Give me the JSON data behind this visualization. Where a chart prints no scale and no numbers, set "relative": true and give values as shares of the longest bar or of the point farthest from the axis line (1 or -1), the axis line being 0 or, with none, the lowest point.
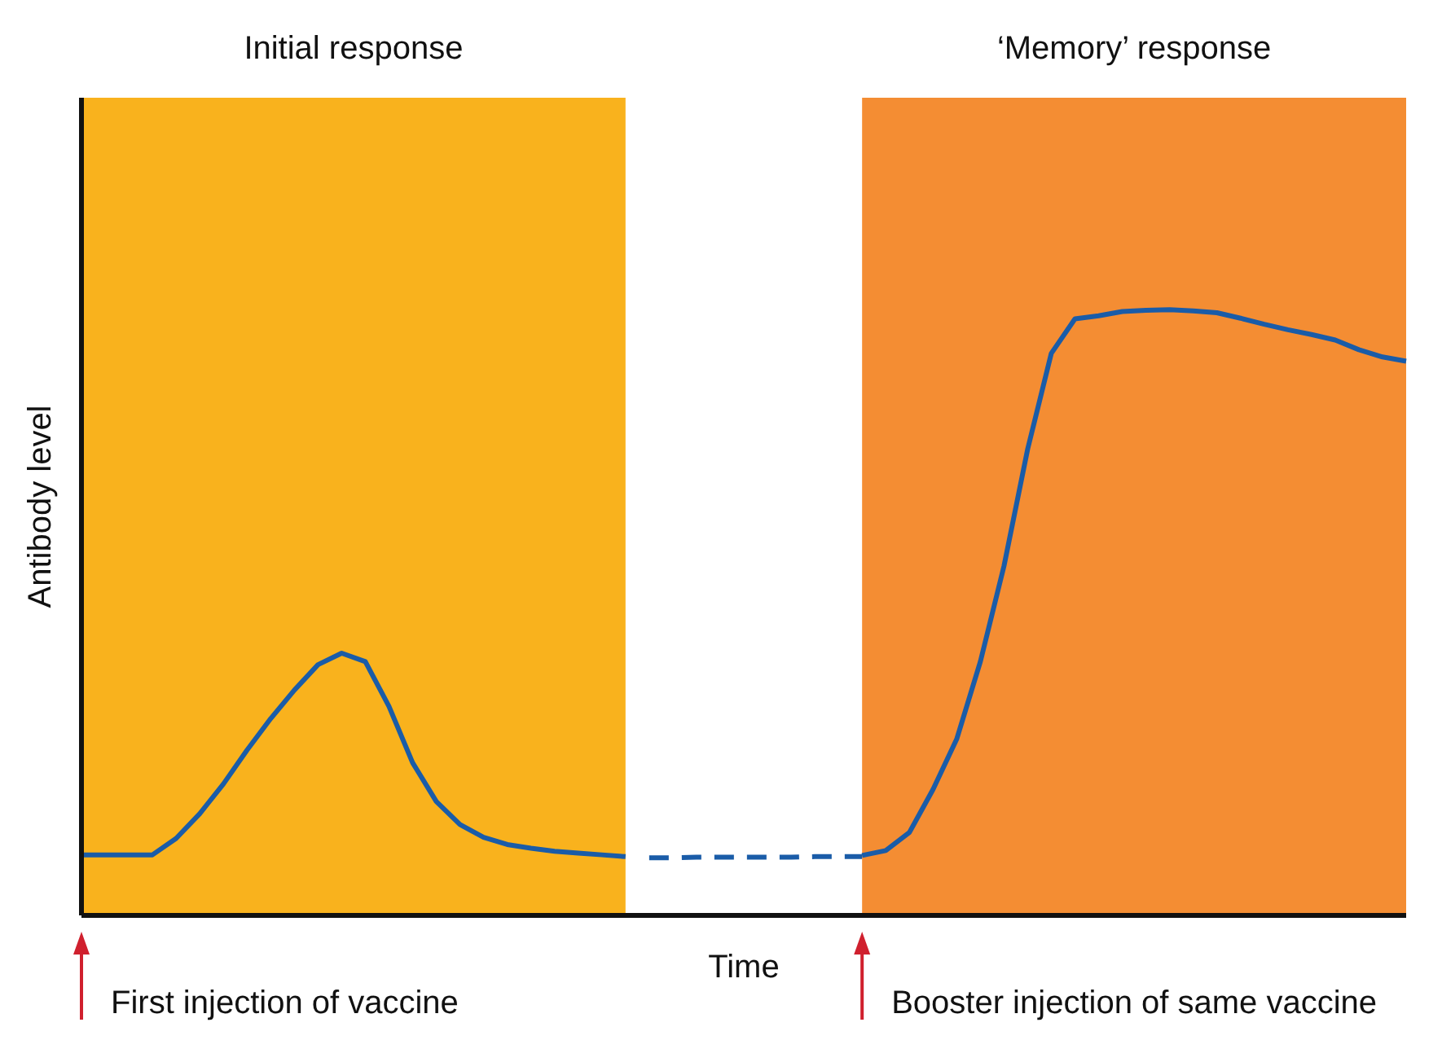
{
  "chart_data": {
    "type": "line",
    "relative": true,
    "xlabel": "Time",
    "ylabel": "Antibody level",
    "marker": "none",
    "line_style": "solid",
    "grid": false,
    "categories": [
      null,
      null,
      null,
      null,
      null,
      null,
      null,
      null,
      null,
      null,
      null,
      null,
      null,
      null,
      null,
      null,
      null,
      null,
      null,
      null,
      null,
      null,
      null,
      null,
      null,
      null,
      null,
      null,
      null,
      null,
      null,
      null,
      null,
      null,
      null,
      null,
      null,
      null,
      null,
      null,
      null,
      null,
      null,
      null,
      null,
      null,
      null,
      null,
      null,
      null,
      null,
      null,
      null,
      null,
      null,
      null,
      null
    ],
    "series": [
      {
        "color": "#1a5ca8",
        "values": [
          0.1,
          0.1,
          0.1,
          0.1,
          0.127,
          0.168,
          0.217,
          0.273,
          0.325,
          0.372,
          0.414,
          0.433,
          0.419,
          0.345,
          0.252,
          0.188,
          0.15,
          0.129,
          0.117,
          0.111,
          0.106,
          0.103,
          0.1,
          0.097,
          null,
          null,
          null,
          null,
          null,
          null,
          null,
          null,
          null,
          null,
          null,
          null,
          null,
          null,
          null,
          null,
          null,
          null,
          null,
          null,
          null,
          null,
          null,
          null,
          null,
          null,
          null,
          null,
          null,
          null,
          null,
          null,
          null
        ]
      },
      {
        "color": "#1a5ca8",
        "line_style": "dashed",
        "values": [
          null,
          null,
          null,
          null,
          null,
          null,
          null,
          null,
          null,
          null,
          null,
          null,
          null,
          null,
          null,
          null,
          null,
          null,
          null,
          null,
          null,
          null,
          null,
          null,
          0.095,
          0.095,
          0.096,
          0.096,
          0.096,
          0.096,
          0.096,
          0.097,
          0.097,
          0.097,
          null,
          null,
          null,
          null,
          null,
          null,
          null,
          null,
          null,
          null,
          null,
          null,
          null,
          null,
          null,
          null,
          null,
          null,
          null,
          null,
          null,
          null,
          null
        ]
      },
      {
        "color": "#1a5ca8",
        "values": [
          null,
          null,
          null,
          null,
          null,
          null,
          null,
          null,
          null,
          null,
          null,
          null,
          null,
          null,
          null,
          null,
          null,
          null,
          null,
          null,
          null,
          null,
          null,
          null,
          null,
          null,
          null,
          null,
          null,
          null,
          null,
          null,
          null,
          0.099,
          0.107,
          0.137,
          0.208,
          0.291,
          0.419,
          0.577,
          0.77,
          0.928,
          0.985,
          0.99,
          0.997,
          0.999,
          1,
          0.998,
          0.995,
          0.986,
          0.976,
          0.967,
          0.959,
          0.95,
          0.934,
          0.922,
          0.915
        ]
      }
    ],
    "annotations": [
      "Initial response",
      "‘Memory’ response",
      "First injection of vaccine",
      "Booster injection of same vaccine"
    ]
  }
}
